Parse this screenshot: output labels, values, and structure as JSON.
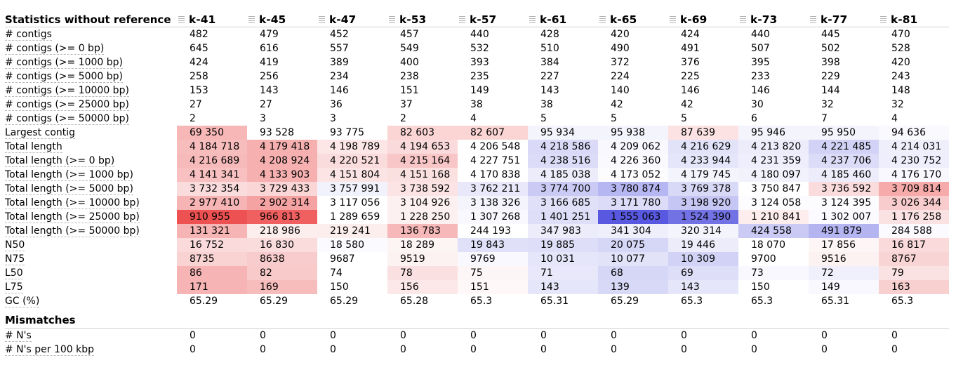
{
  "columns": [
    "k-41",
    "k-45",
    "k-47",
    "k-53",
    "k-57",
    "k-61",
    "k-65",
    "k-69",
    "k-73",
    "k-77",
    "k-81"
  ],
  "sections": [
    {
      "title": "Statistics without reference",
      "rows": [
        {
          "label": "# contigs",
          "values": [
            "482",
            "479",
            "452",
            "457",
            "440",
            "428",
            "420",
            "424",
            "440",
            "445",
            "470"
          ],
          "colors": [
            "",
            "",
            "",
            "",
            "",
            "",
            "",
            "",
            "",
            "",
            ""
          ]
        },
        {
          "label": "# contigs (>= 0 bp)",
          "values": [
            "645",
            "616",
            "557",
            "549",
            "532",
            "510",
            "490",
            "491",
            "507",
            "502",
            "528"
          ],
          "colors": [
            "",
            "",
            "",
            "",
            "",
            "",
            "",
            "",
            "",
            "",
            ""
          ]
        },
        {
          "label": "# contigs (>= 1000 bp)",
          "values": [
            "424",
            "419",
            "389",
            "400",
            "393",
            "384",
            "372",
            "376",
            "395",
            "398",
            "420"
          ],
          "colors": [
            "",
            "",
            "",
            "",
            "",
            "",
            "",
            "",
            "",
            "",
            ""
          ]
        },
        {
          "label": "# contigs (>= 5000 bp)",
          "values": [
            "258",
            "256",
            "234",
            "238",
            "235",
            "227",
            "224",
            "225",
            "233",
            "229",
            "243"
          ],
          "colors": [
            "",
            "",
            "",
            "",
            "",
            "",
            "",
            "",
            "",
            "",
            ""
          ]
        },
        {
          "label": "# contigs (>= 10000 bp)",
          "values": [
            "153",
            "143",
            "146",
            "151",
            "149",
            "143",
            "140",
            "146",
            "146",
            "144",
            "148"
          ],
          "colors": [
            "",
            "",
            "",
            "",
            "",
            "",
            "",
            "",
            "",
            "",
            ""
          ]
        },
        {
          "label": "# contigs (>= 25000 bp)",
          "values": [
            "27",
            "27",
            "36",
            "37",
            "38",
            "38",
            "42",
            "42",
            "30",
            "32",
            "32"
          ],
          "colors": [
            "",
            "",
            "",
            "",
            "",
            "",
            "",
            "",
            "",
            "",
            ""
          ]
        },
        {
          "label": "# contigs (>= 50000 bp)",
          "values": [
            "2",
            "3",
            "3",
            "2",
            "4",
            "5",
            "5",
            "5",
            "6",
            "7",
            "4"
          ],
          "colors": [
            "",
            "",
            "",
            "",
            "",
            "",
            "",
            "",
            "",
            "",
            ""
          ]
        },
        {
          "label": "Largest contig",
          "values": [
            "69 350",
            "93 528",
            "93 775",
            "82 603",
            "82 607",
            "95 934",
            "95 938",
            "87 639",
            "95 946",
            "95 950",
            "94 636"
          ],
          "colors": [
            "#f7b7b7",
            "#ffffff",
            "#ffffff",
            "#fbd4d4",
            "#fbd4d4",
            "#f4f4fd",
            "#f4f4fd",
            "#fce2e2",
            "#f4f4fd",
            "#f4f4fd",
            "#f9f9fe"
          ]
        },
        {
          "label": "Total length",
          "values": [
            "4 184 718",
            "4 179 418",
            "4 198 789",
            "4 194 653",
            "4 206 548",
            "4 218 586",
            "4 209 062",
            "4 216 629",
            "4 213 820",
            "4 221 485",
            "4 214 031"
          ],
          "colors": [
            "#f7bcbc",
            "#f6b0b0",
            "#fce6e6",
            "#fadada",
            "#ffffff",
            "#dadaf8",
            "#f8f8fe",
            "#e2e2f9",
            "#ececfb",
            "#d2d2f6",
            "#efeffc"
          ]
        },
        {
          "label": "Total length (>= 0 bp)",
          "values": [
            "4 216 689",
            "4 208 924",
            "4 220 521",
            "4 215 164",
            "4 227 751",
            "4 238 516",
            "4 226 360",
            "4 233 944",
            "4 231 359",
            "4 237 706",
            "4 230 752"
          ],
          "colors": [
            "#f7baba",
            "#f6b0b0",
            "#fbdcdc",
            "#f8c6c6",
            "#ffffff",
            "#dcdcf8",
            "#f9f9fe",
            "#e6e6fa",
            "#eeeefc",
            "#dcdcf8",
            "#eeeefc"
          ]
        },
        {
          "label": "Total length (>= 1000 bp)",
          "values": [
            "4 141 341",
            "4 133 903",
            "4 151 804",
            "4 151 168",
            "4 170 838",
            "4 185 038",
            "4 173 052",
            "4 179 745",
            "4 180 097",
            "4 185 460",
            "4 176 170"
          ],
          "colors": [
            "#f8c0c0",
            "#f6b0b0",
            "#fce4e4",
            "#fbe0e0",
            "#ffffff",
            "#ececfb",
            "#fcfcff",
            "#f4f4fd",
            "#f2f2fd",
            "#ececfb",
            "#f8f8fe"
          ]
        },
        {
          "label": "Total length (>= 5000 bp)",
          "values": [
            "3 732 354",
            "3 729 433",
            "3 757 991",
            "3 738 592",
            "3 762 211",
            "3 774 700",
            "3 780 874",
            "3 769 378",
            "3 750 847",
            "3 736 592",
            "3 709 814"
          ],
          "colors": [
            "#fadcdc",
            "#fad6d6",
            "#f2f2fd",
            "#fce4e4",
            "#e8e8fa",
            "#cacaf5",
            "#b6b6f2",
            "#d8d8f7",
            "#ffffff",
            "#fbdcdc",
            "#f6aaaa"
          ]
        },
        {
          "label": "Total length (>= 10000 bp)",
          "values": [
            "2 977 410",
            "2 902 314",
            "3 117 056",
            "3 104 926",
            "3 138 326",
            "3 166 685",
            "3 171 780",
            "3 198 920",
            "3 124 058",
            "3 124 395",
            "3 026 344"
          ],
          "colors": [
            "#f6b4b4",
            "#f4a2a2",
            "#ffffff",
            "#fdf0f0",
            "#f4f4fd",
            "#e0e0f9",
            "#dcdcf8",
            "#c6c6f4",
            "#fcfcff",
            "#fcfcff",
            "#f8cccc"
          ]
        },
        {
          "label": "Total length (>= 25000 bp)",
          "values": [
            "910 955",
            "966 813",
            "1 289 659",
            "1 228 250",
            "1 307 268",
            "1 401 251",
            "1 555 063",
            "1 524 390",
            "1 210 841",
            "1 302 007",
            "1 176 258"
          ],
          "colors": [
            "#ee5151",
            "#f06060",
            "#ffffff",
            "#fdf0f0",
            "#f8f8fe",
            "#dedef8",
            "#5858e0",
            "#7272e5",
            "#fdeded",
            "#fafaff",
            "#fae2e2"
          ]
        },
        {
          "label": "Total length (>= 50000 bp)",
          "values": [
            "131 321",
            "218 986",
            "219 241",
            "136 783",
            "244 193",
            "347 983",
            "341 304",
            "320 314",
            "424 558",
            "491 879",
            "284 588"
          ],
          "colors": [
            "#f6b4b4",
            "#fdeeee",
            "#fdeeee",
            "#f6b8b8",
            "#ffffff",
            "#ececfb",
            "#efeffc",
            "#f4f4fd",
            "#cacaf5",
            "#b4b4f1",
            "#fafaff"
          ]
        },
        {
          "label": "N50",
          "values": [
            "16 752",
            "16 830",
            "18 580",
            "18 289",
            "19 843",
            "19 885",
            "20 075",
            "19 446",
            "18 070",
            "17 856",
            "16 817"
          ],
          "colors": [
            "#fadada",
            "#fadcdc",
            "#fafaff",
            "#fdf4f4",
            "#e0e0f9",
            "#dedef8",
            "#d6d6f7",
            "#ececfb",
            "#ffffff",
            "#fef6f6",
            "#fadada"
          ]
        },
        {
          "label": "N75",
          "values": [
            "8735",
            "8638",
            "9687",
            "9519",
            "9769",
            "10 031",
            "10 077",
            "10 309",
            "9700",
            "9516",
            "8767"
          ],
          "colors": [
            "#f9d2d2",
            "#f8cccc",
            "#ffffff",
            "#fdf2f2",
            "#f8f8fe",
            "#e6e6fa",
            "#e2e2f9",
            "#d2d2f6",
            "#ffffff",
            "#fdf2f2",
            "#f9d4d4"
          ]
        },
        {
          "label": "L50",
          "values": [
            "86",
            "82",
            "74",
            "78",
            "75",
            "71",
            "68",
            "69",
            "73",
            "72",
            "79"
          ],
          "colors": [
            "#f6b4b4",
            "#f8caca",
            "#ffffff",
            "#fae0e0",
            "#fdf6f6",
            "#e8e8fa",
            "#d6d6f7",
            "#dedef8",
            "#f8f8fe",
            "#f0f0fc",
            "#fbe2e2"
          ]
        },
        {
          "label": "L75",
          "values": [
            "171",
            "169",
            "150",
            "156",
            "151",
            "143",
            "139",
            "143",
            "150",
            "149",
            "163"
          ],
          "colors": [
            "#f6b4b4",
            "#f7bcbc",
            "#ffffff",
            "#fce8e8",
            "#fef8f8",
            "#e6e6fa",
            "#d8d8f7",
            "#e6e6fa",
            "#ffffff",
            "#f8f8fe",
            "#f9d0d0"
          ]
        },
        {
          "label": "GC (%)",
          "values": [
            "65.29",
            "65.29",
            "65.29",
            "65.28",
            "65.3",
            "65.31",
            "65.29",
            "65.3",
            "65.3",
            "65.31",
            "65.3"
          ],
          "colors": [
            "",
            "",
            "",
            "",
            "",
            "",
            "",
            "",
            "",
            "",
            ""
          ]
        }
      ]
    },
    {
      "title": "Mismatches",
      "rows": [
        {
          "label": "# N's",
          "values": [
            "0",
            "0",
            "0",
            "0",
            "0",
            "0",
            "0",
            "0",
            "0",
            "0",
            "0"
          ],
          "colors": [
            "",
            "",
            "",
            "",
            "",
            "",
            "",
            "",
            "",
            "",
            ""
          ]
        },
        {
          "label": "# N's per 100 kbp",
          "values": [
            "0",
            "0",
            "0",
            "0",
            "0",
            "0",
            "0",
            "0",
            "0",
            "0",
            "0"
          ],
          "colors": [
            "",
            "",
            "",
            "",
            "",
            "",
            "",
            "",
            "",
            "",
            ""
          ]
        }
      ]
    }
  ]
}
